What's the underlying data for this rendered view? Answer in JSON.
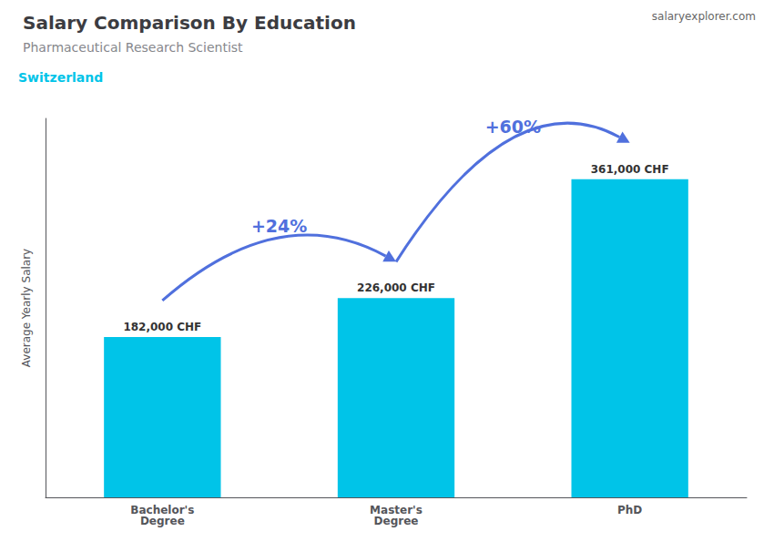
{
  "chart_data": {
    "type": "bar",
    "title": "Salary Comparison By Education",
    "subtitle": "Pharmaceutical Research Scientist",
    "ylabel": "Average Yearly Salary",
    "categories": [
      "Bachelor's\nDegree",
      "Master's\nDegree",
      "PhD"
    ],
    "values": [
      182000,
      226000,
      361000
    ],
    "value_labels": [
      "182,000 CHF",
      "226,000 CHF",
      "361,000 CHF"
    ],
    "data_labels": true,
    "color": "#00C4E8",
    "ylim": [
      0,
      430000
    ],
    "tick_labels": "x",
    "grid": false,
    "annotations": [
      {
        "text": "Switzerland"
      },
      {
        "text": "salaryexplorer.com"
      },
      {
        "text": "+24%",
        "from": "Bachelor's\nDegree",
        "to": "Master's\nDegree"
      },
      {
        "text": "+60%",
        "from": "Master's\nDegree",
        "to": "PhD"
      }
    ]
  }
}
